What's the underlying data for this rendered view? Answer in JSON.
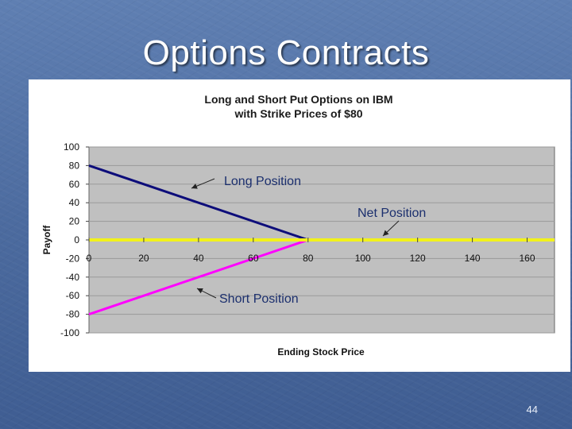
{
  "slide": {
    "title": "Options Contracts",
    "page_number": "44"
  },
  "colors": {
    "plot_area": "#c0c0c0",
    "gridline": "#9a9a9a",
    "long_position": "#0d0d7a",
    "short_position": "#ff00ff",
    "net_position": "#f2f21a",
    "annotation_text": "#1b2f6e"
  },
  "chart_data": {
    "type": "line",
    "title_lines": [
      "Long and Short Put Options on IBM",
      "with Strike Prices of $80"
    ],
    "xlabel": "Ending Stock Price",
    "ylabel": "Payoff",
    "xlim": [
      0,
      170
    ],
    "ylim": [
      -100,
      100
    ],
    "x_ticks": [
      0,
      20,
      40,
      60,
      80,
      100,
      120,
      140,
      160
    ],
    "y_ticks": [
      100,
      80,
      60,
      40,
      20,
      0,
      -20,
      -40,
      -60,
      -80,
      -100
    ],
    "grid": true,
    "series": [
      {
        "key": "long",
        "x": [
          0,
          80,
          170
        ],
        "y": [
          80,
          0,
          0
        ]
      },
      {
        "key": "short",
        "x": [
          0,
          80,
          170
        ],
        "y": [
          -80,
          0,
          0
        ]
      },
      {
        "key": "net",
        "x": [
          0,
          170
        ],
        "y": [
          0,
          0
        ]
      }
    ],
    "annotations": [
      {
        "key": "long",
        "text": "Long Position"
      },
      {
        "key": "net",
        "text": "Net Position"
      },
      {
        "key": "short",
        "text": "Short Position"
      }
    ]
  }
}
